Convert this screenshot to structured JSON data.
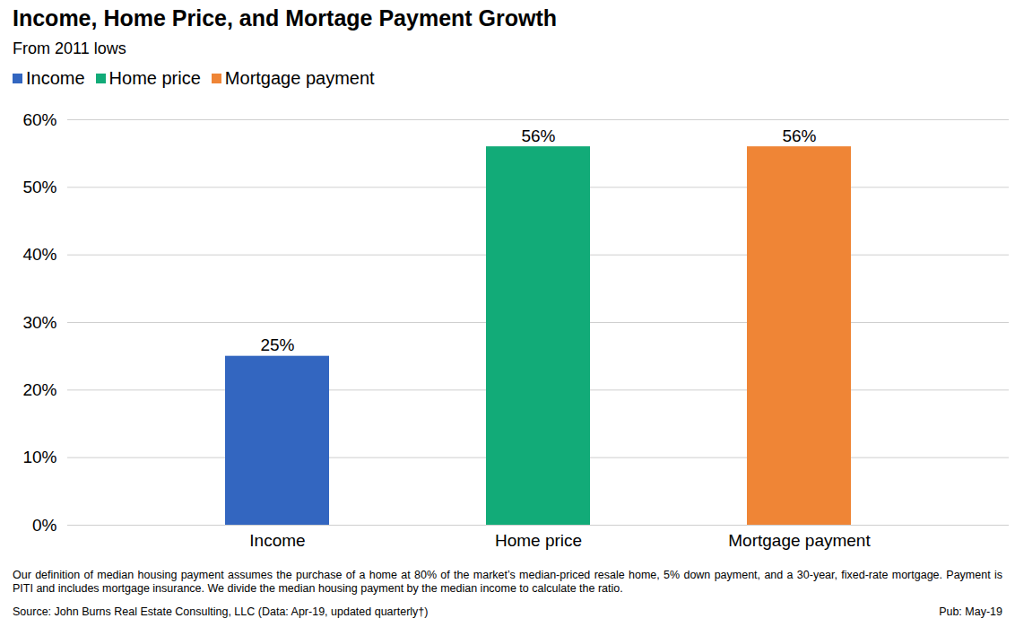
{
  "chart_data": {
    "type": "bar",
    "title": "Income, Home Price, and Mortage Payment Growth",
    "subtitle": "From 2011 lows",
    "categories": [
      "Income",
      "Home price",
      "Mortgage payment"
    ],
    "values": [
      25,
      56,
      56
    ],
    "value_labels": [
      "25%",
      "56%",
      "56%"
    ],
    "colors": [
      "#3366c0",
      "#12ab78",
      "#ef8536"
    ],
    "ylim": [
      0,
      60
    ],
    "yticks": [
      {
        "value": 0,
        "label": "0%"
      },
      {
        "value": 10,
        "label": "10%"
      },
      {
        "value": 20,
        "label": "20%"
      },
      {
        "value": 30,
        "label": "30%"
      },
      {
        "value": 40,
        "label": "40%"
      },
      {
        "value": 50,
        "label": "50%"
      },
      {
        "value": 60,
        "label": "60%"
      }
    ],
    "grid": true,
    "legend": "top-left",
    "data_labels": true,
    "caption": "Our definition of median housing payment assumes the purchase of a home at 80% of the market’s median-priced resale home, 5% down payment, and a 30-year, fixed-rate mortgage. Payment is PITI and includes mortgage insurance. We divide the median housing payment by the median income to calculate the ratio.",
    "source": "Source: John Burns Real Estate Consulting, LLC (Data: Apr-19, updated quarterly†)",
    "pub": "Pub: May-19"
  }
}
